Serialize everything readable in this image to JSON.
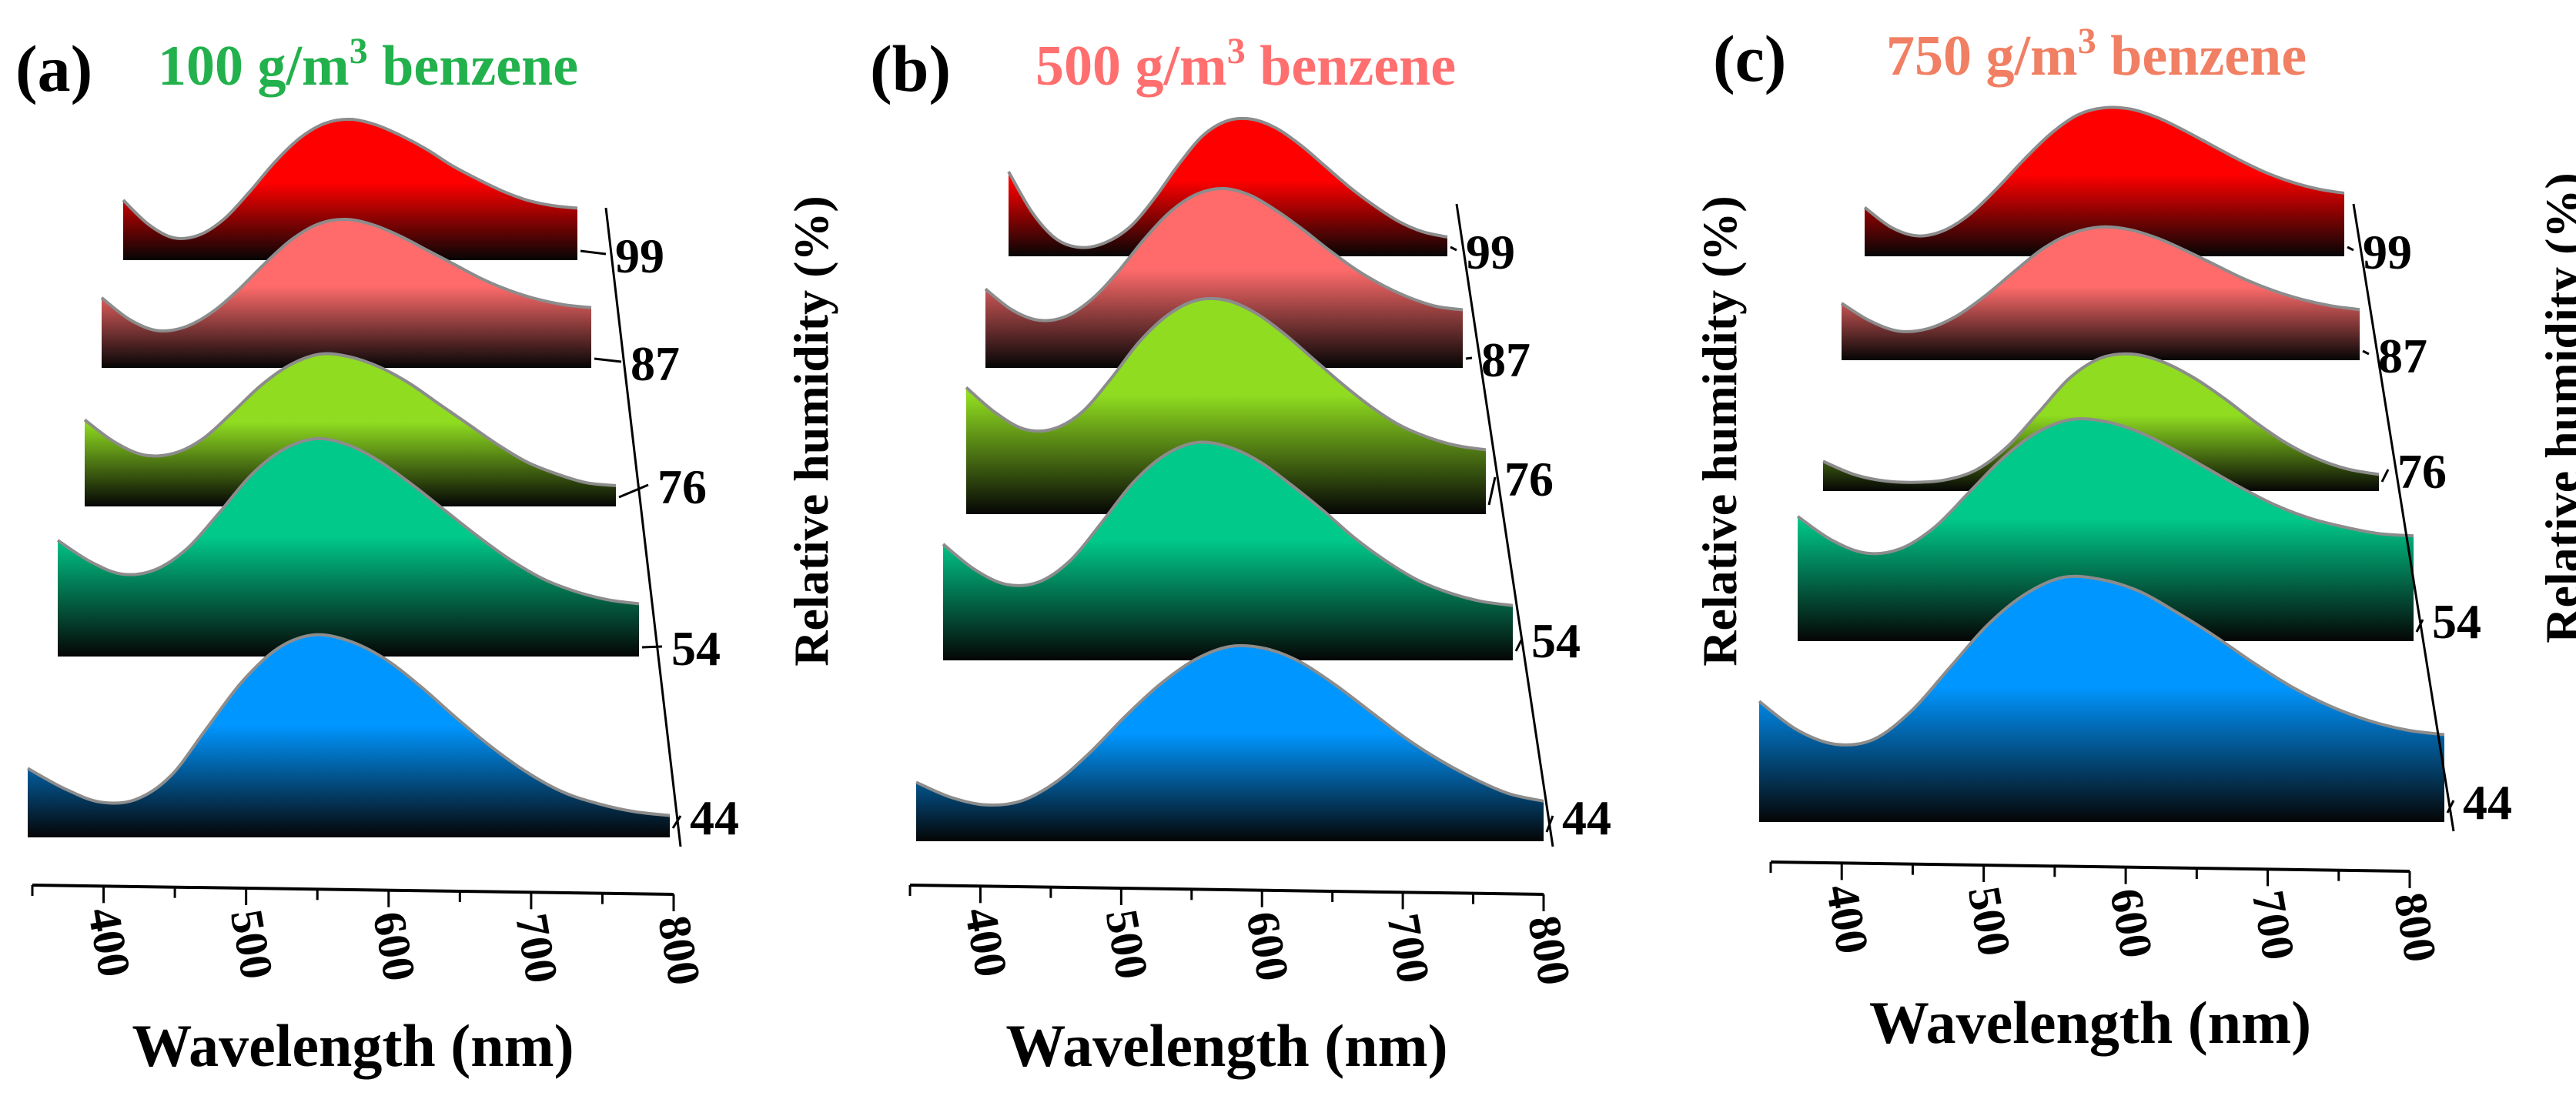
{
  "figure": {
    "colors": {
      "rh99": "#ff0000",
      "rh87": "#ff6b6b",
      "rh76": "#8fdc20",
      "rh54": "#00c98a",
      "rh44": "#0096ff",
      "axis": "#000000",
      "ridge_line": "#8c8c8c",
      "grid": "#c8c8c8"
    }
  },
  "chart_data": [
    {
      "type": "area",
      "panel_label": "(a)",
      "title_parts": [
        "100 g/m",
        "3",
        " benzene"
      ],
      "title_color": "#22b14c",
      "xlabel": "Wavelength (nm)",
      "ylabel": "Relative humidity (%)",
      "xlim": [
        350,
        800
      ],
      "x_ticks": [
        "400",
        "500",
        "600",
        "700",
        "800"
      ],
      "humidity_ticks": [
        "99",
        "87",
        "76",
        "54",
        "44"
      ],
      "x": [
        350,
        375,
        400,
        425,
        450,
        475,
        500,
        525,
        550,
        575,
        600,
        625,
        650,
        675,
        700,
        725,
        750,
        775,
        800
      ],
      "series": [
        {
          "name": "99",
          "values": [
            0.4,
            0.22,
            0.12,
            0.14,
            0.26,
            0.46,
            0.68,
            0.86,
            0.97,
            1.0,
            0.96,
            0.88,
            0.78,
            0.66,
            0.56,
            0.47,
            0.4,
            0.36,
            0.34
          ]
        },
        {
          "name": "87",
          "values": [
            0.45,
            0.3,
            0.22,
            0.24,
            0.34,
            0.5,
            0.69,
            0.86,
            0.97,
            1.0,
            0.96,
            0.88,
            0.78,
            0.68,
            0.58,
            0.5,
            0.44,
            0.4,
            0.38
          ]
        },
        {
          "name": "76",
          "values": [
            0.55,
            0.4,
            0.31,
            0.32,
            0.42,
            0.6,
            0.79,
            0.93,
            1.0,
            0.98,
            0.91,
            0.8,
            0.66,
            0.52,
            0.38,
            0.26,
            0.18,
            0.12,
            0.1
          ]
        },
        {
          "name": "54",
          "values": [
            0.52,
            0.42,
            0.36,
            0.38,
            0.48,
            0.65,
            0.83,
            0.95,
            1.0,
            0.97,
            0.89,
            0.78,
            0.66,
            0.54,
            0.43,
            0.34,
            0.28,
            0.24,
            0.22
          ]
        },
        {
          "name": "44",
          "values": [
            0.32,
            0.22,
            0.15,
            0.16,
            0.28,
            0.52,
            0.76,
            0.93,
            1.0,
            0.97,
            0.88,
            0.74,
            0.58,
            0.43,
            0.3,
            0.2,
            0.14,
            0.1,
            0.08
          ]
        }
      ]
    },
    {
      "type": "area",
      "panel_label": "(b)",
      "title_parts": [
        "500 g/m",
        "3",
        " benzene"
      ],
      "title_color": "#ff6f6f",
      "xlabel": "Wavelength (nm)",
      "ylabel": "Relative humidity (%)",
      "xlim": [
        350,
        800
      ],
      "x_ticks": [
        "400",
        "500",
        "600",
        "700",
        "800"
      ],
      "humidity_ticks": [
        "99",
        "87",
        "76",
        "54",
        "44"
      ],
      "x": [
        350,
        375,
        400,
        425,
        450,
        475,
        500,
        525,
        550,
        575,
        600,
        625,
        650,
        675,
        700,
        725,
        750,
        775,
        800
      ],
      "series": [
        {
          "name": "99",
          "values": [
            0.6,
            0.28,
            0.08,
            0.02,
            0.06,
            0.18,
            0.4,
            0.66,
            0.88,
            0.99,
            1.0,
            0.93,
            0.8,
            0.64,
            0.48,
            0.34,
            0.22,
            0.14,
            0.1
          ]
        },
        {
          "name": "87",
          "values": [
            0.42,
            0.3,
            0.24,
            0.26,
            0.36,
            0.52,
            0.71,
            0.87,
            0.97,
            1.0,
            0.96,
            0.87,
            0.76,
            0.64,
            0.53,
            0.44,
            0.37,
            0.32,
            0.3
          ]
        },
        {
          "name": "76",
          "values": [
            0.58,
            0.46,
            0.38,
            0.38,
            0.46,
            0.62,
            0.8,
            0.93,
            1.0,
            1.0,
            0.94,
            0.84,
            0.72,
            0.6,
            0.49,
            0.4,
            0.34,
            0.3,
            0.28
          ]
        },
        {
          "name": "54",
          "values": [
            0.52,
            0.4,
            0.33,
            0.34,
            0.44,
            0.62,
            0.81,
            0.94,
            1.0,
            0.98,
            0.91,
            0.8,
            0.68,
            0.55,
            0.44,
            0.35,
            0.29,
            0.25,
            0.23
          ]
        },
        {
          "name": "44",
          "values": [
            0.28,
            0.2,
            0.16,
            0.18,
            0.28,
            0.44,
            0.63,
            0.8,
            0.93,
            1.0,
            0.99,
            0.92,
            0.8,
            0.66,
            0.52,
            0.4,
            0.3,
            0.22,
            0.18
          ]
        }
      ]
    },
    {
      "type": "area",
      "panel_label": "(c)",
      "title_parts": [
        "750 g/m",
        "3",
        " benzene"
      ],
      "title_color": "#f07f63",
      "xlabel": "Wavelength (nm)",
      "ylabel": "Relative humidity (%)",
      "xlim": [
        350,
        800
      ],
      "x_ticks": [
        "400",
        "500",
        "600",
        "700",
        "800"
      ],
      "humidity_ticks": [
        "99",
        "87",
        "76",
        "54",
        "44"
      ],
      "x": [
        350,
        375,
        400,
        425,
        450,
        475,
        500,
        525,
        550,
        575,
        600,
        625,
        650,
        675,
        700,
        725,
        750,
        775,
        800
      ],
      "series": [
        {
          "name": "99",
          "values": [
            0.3,
            0.16,
            0.1,
            0.14,
            0.26,
            0.44,
            0.64,
            0.82,
            0.95,
            1.0,
            0.99,
            0.93,
            0.84,
            0.74,
            0.64,
            0.55,
            0.48,
            0.43,
            0.4
          ]
        },
        {
          "name": "87",
          "values": [
            0.4,
            0.26,
            0.18,
            0.2,
            0.3,
            0.46,
            0.65,
            0.83,
            0.95,
            1.0,
            0.98,
            0.91,
            0.81,
            0.7,
            0.59,
            0.5,
            0.43,
            0.38,
            0.35
          ]
        },
        {
          "name": "76",
          "values": [
            0.18,
            0.08,
            0.03,
            0.02,
            0.04,
            0.12,
            0.3,
            0.56,
            0.82,
            0.97,
            1.0,
            0.94,
            0.82,
            0.66,
            0.48,
            0.32,
            0.2,
            0.12,
            0.08
          ]
        },
        {
          "name": "54",
          "values": [
            0.55,
            0.44,
            0.38,
            0.4,
            0.5,
            0.66,
            0.82,
            0.94,
            1.0,
            0.99,
            0.94,
            0.86,
            0.77,
            0.68,
            0.6,
            0.54,
            0.5,
            0.47,
            0.46
          ]
        },
        {
          "name": "44",
          "values": [
            0.48,
            0.36,
            0.3,
            0.32,
            0.44,
            0.62,
            0.8,
            0.93,
            1.0,
            0.99,
            0.94,
            0.85,
            0.75,
            0.64,
            0.54,
            0.46,
            0.4,
            0.36,
            0.34
          ]
        }
      ]
    }
  ]
}
